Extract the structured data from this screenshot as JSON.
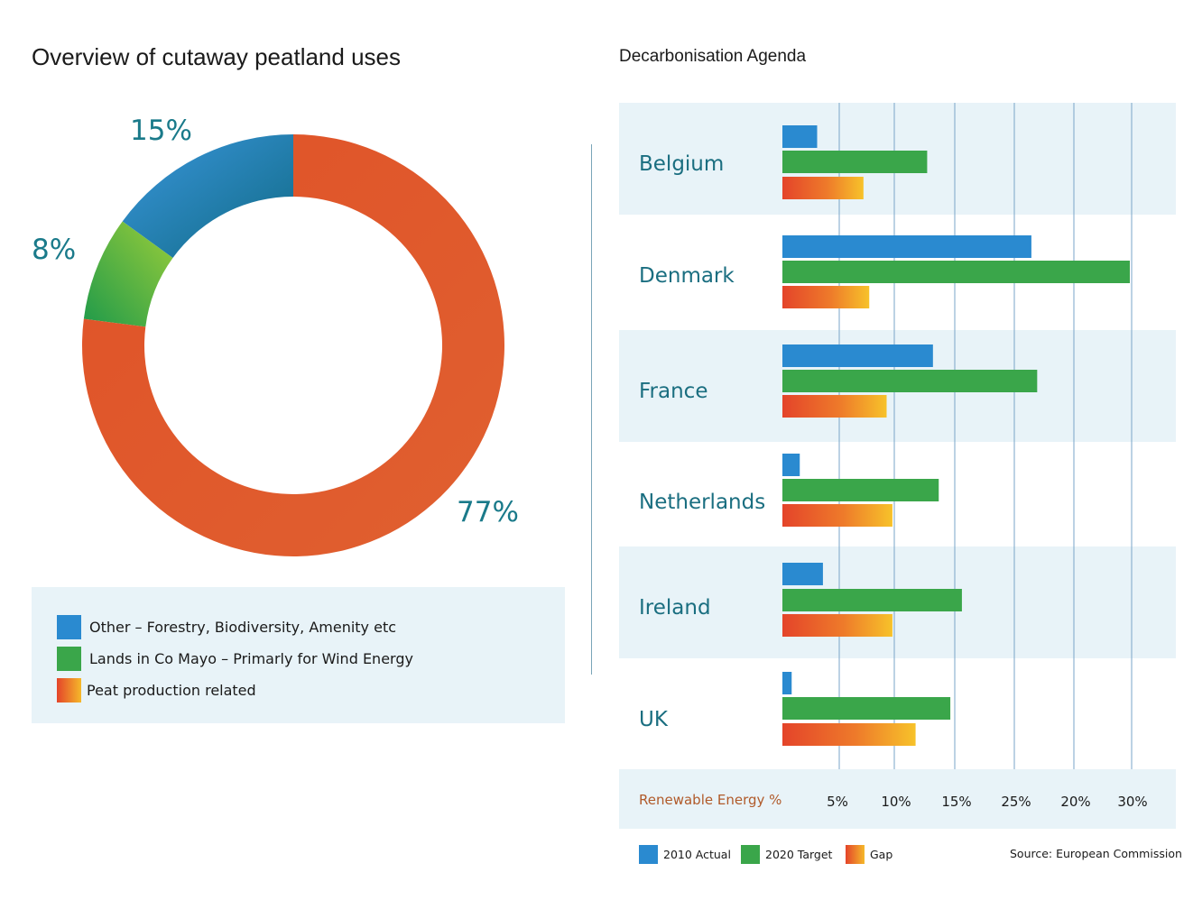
{
  "colors": {
    "blue": "#2a8ad0",
    "green": "#3aa64a",
    "orange": "#e4522a",
    "yellow": "#f5b82a",
    "teal_text": "#1a7a8a",
    "band": "#e8f3f8",
    "gridline": "#7aa5c8",
    "axis_label": "#b05a2a"
  },
  "chart_data": [
    {
      "type": "pie",
      "title": "Overview of cutaway peatland uses",
      "donut": true,
      "slices": [
        {
          "label": "Other – Forestry, Biodiversity, Amenity etc",
          "value": 15,
          "display": "15%",
          "color": "#2a8ad0"
        },
        {
          "label": "Lands in Co Mayo – Primarly for Wind Energy",
          "value": 8,
          "display": "8%",
          "color": "#3aa64a"
        },
        {
          "label": "Peat production related",
          "value": 77,
          "display": "77%",
          "color": "#e4522a"
        }
      ]
    },
    {
      "type": "bar",
      "orientation": "horizontal",
      "title": "Decarbonisation Agenda",
      "xlabel": "Renewable Energy %",
      "tick_labels": [
        "5%",
        "10%",
        "15%",
        "25%",
        "20%",
        "30%"
      ],
      "categories": [
        "Belgium",
        "Denmark",
        "France",
        "Netherlands",
        "Ireland",
        "UK"
      ],
      "series": [
        {
          "name": "2010 Actual",
          "values": [
            3,
            21.5,
            13,
            1.5,
            3.5,
            0.8
          ],
          "color": "#2a8ad0"
        },
        {
          "name": "2020 Target",
          "values": [
            12.5,
            30,
            22,
            13.5,
            15.5,
            14.5
          ],
          "color": "#3aa64a"
        },
        {
          "name": "Gap",
          "values": [
            7,
            7.5,
            9,
            9.5,
            9.5,
            11.5
          ],
          "color": "#e4522a"
        }
      ],
      "axis_range": [
        0,
        30
      ],
      "grid": true,
      "legend_position": "bottom-left"
    }
  ],
  "source": "Source: European Commission"
}
